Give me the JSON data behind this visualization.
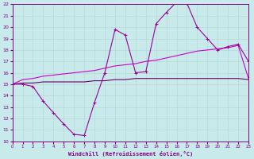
{
  "xlabel": "Windchill (Refroidissement éolien,°C)",
  "x": [
    0,
    1,
    2,
    3,
    4,
    5,
    6,
    7,
    8,
    9,
    10,
    11,
    12,
    13,
    14,
    15,
    16,
    17,
    18,
    19,
    20,
    21,
    22,
    23
  ],
  "line1": [
    15.0,
    15.0,
    14.8,
    13.5,
    12.5,
    11.5,
    10.6,
    10.5,
    13.4,
    16.0,
    19.8,
    19.3,
    16.0,
    16.1,
    20.3,
    21.3,
    22.2,
    22.1,
    20.0,
    19.0,
    18.0,
    18.3,
    18.5,
    17.0
  ],
  "line2": [
    15.0,
    15.4,
    15.5,
    15.7,
    15.8,
    15.9,
    16.0,
    16.1,
    16.2,
    16.4,
    16.6,
    16.7,
    16.8,
    17.0,
    17.1,
    17.3,
    17.5,
    17.7,
    17.9,
    18.0,
    18.1,
    18.2,
    18.4,
    15.5
  ],
  "line3": [
    15.0,
    15.1,
    15.1,
    15.2,
    15.2,
    15.2,
    15.2,
    15.2,
    15.3,
    15.3,
    15.4,
    15.4,
    15.5,
    15.5,
    15.5,
    15.5,
    15.5,
    15.5,
    15.5,
    15.5,
    15.5,
    15.5,
    15.5,
    15.4
  ],
  "line_color1": "#990099",
  "line_color2": "#cc00cc",
  "line_color3": "#660066",
  "bg_color": "#c8eaea",
  "grid_color": "#b8d8d8",
  "text_color": "#800080",
  "ylim": [
    10,
    22
  ],
  "xlim": [
    0,
    23
  ],
  "yticks": [
    10,
    11,
    12,
    13,
    14,
    15,
    16,
    17,
    18,
    19,
    20,
    21,
    22
  ],
  "xticks": [
    0,
    1,
    2,
    3,
    4,
    5,
    6,
    7,
    8,
    9,
    10,
    11,
    12,
    13,
    14,
    15,
    16,
    17,
    18,
    19,
    20,
    21,
    22,
    23
  ]
}
